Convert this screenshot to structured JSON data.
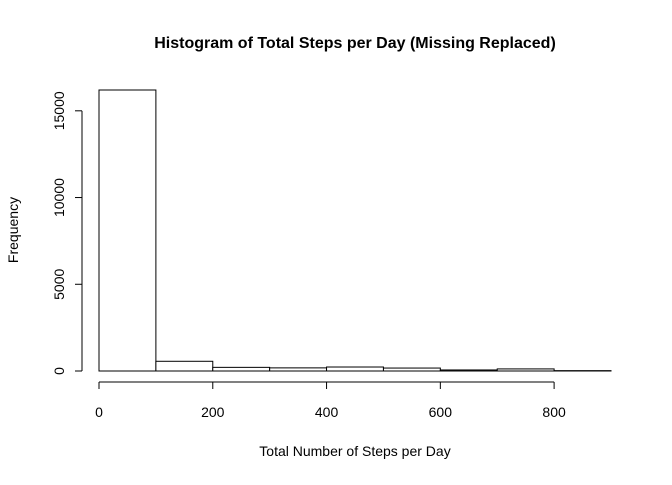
{
  "chart_data": {
    "type": "bar",
    "title": "Histogram of Total Steps per Day (Missing Replaced)",
    "xlabel": "Total Number of Steps per Day",
    "ylabel": "Frequency",
    "bins": [
      {
        "start": 0,
        "end": 100,
        "count": 16200
      },
      {
        "start": 100,
        "end": 200,
        "count": 560
      },
      {
        "start": 200,
        "end": 300,
        "count": 210
      },
      {
        "start": 300,
        "end": 400,
        "count": 180
      },
      {
        "start": 400,
        "end": 500,
        "count": 230
      },
      {
        "start": 500,
        "end": 600,
        "count": 170
      },
      {
        "start": 600,
        "end": 700,
        "count": 60
      },
      {
        "start": 700,
        "end": 800,
        "count": 120
      },
      {
        "start": 800,
        "end": 900,
        "count": 20
      }
    ],
    "xlim": [
      0,
      900
    ],
    "ylim": [
      0,
      16200
    ],
    "x_ticks": [
      {
        "value": 0,
        "label": "0"
      },
      {
        "value": 200,
        "label": "200"
      },
      {
        "value": 400,
        "label": "400"
      },
      {
        "value": 600,
        "label": "600"
      },
      {
        "value": 800,
        "label": "800"
      }
    ],
    "y_ticks": [
      {
        "value": 0,
        "label": "0"
      },
      {
        "value": 5000,
        "label": "5000"
      },
      {
        "value": 10000,
        "label": "10000"
      },
      {
        "value": 15000,
        "label": "15000"
      }
    ],
    "grid": false,
    "legend": "none",
    "bar_fill": "#ffffff",
    "bar_stroke": "#000000"
  }
}
